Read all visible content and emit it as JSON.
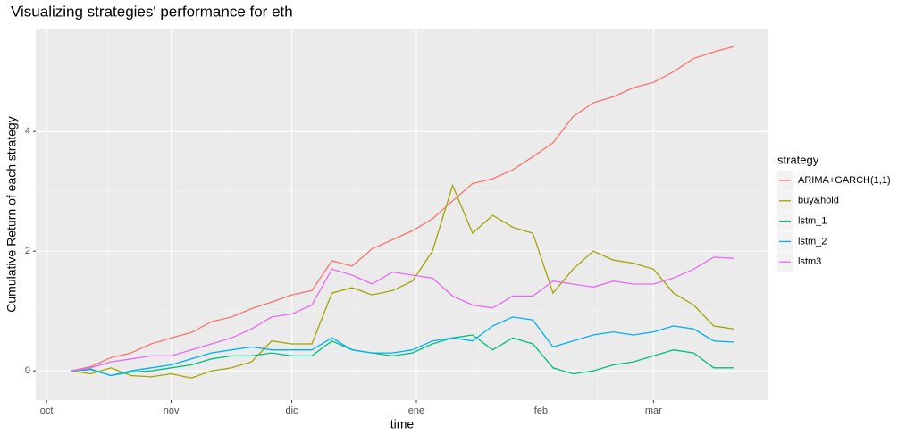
{
  "chart_data": {
    "type": "line",
    "title": "Visualizing strategies' performance for eth",
    "x_label": "time",
    "y_label": "Cumulative Return of each strategy",
    "legend_title": "strategy",
    "legend": "right",
    "grid": true,
    "x": [
      6,
      11,
      16,
      21,
      26,
      31,
      36,
      41,
      46,
      51,
      56,
      61,
      66,
      71,
      76,
      81,
      86,
      91,
      96,
      101,
      106,
      111,
      116,
      121,
      126,
      131,
      136,
      141,
      146,
      151,
      156,
      161,
      166,
      171
    ],
    "xlim": [
      -2.7,
      179.6
    ],
    "xticks": [
      {
        "value": 0,
        "label": "oct"
      },
      {
        "value": 31,
        "label": "nov"
      },
      {
        "value": 61,
        "label": "dic"
      },
      {
        "value": 92,
        "label": "ene"
      },
      {
        "value": 123,
        "label": "feb"
      },
      {
        "value": 151,
        "label": "mar"
      }
    ],
    "ylim": [
      -0.49,
      5.72
    ],
    "yticks": [
      0,
      2,
      4
    ],
    "series": [
      {
        "name": "ARIMA+GARCH(1,1)",
        "color": "#F8766D",
        "values": [
          0,
          0.07,
          0.22,
          0.3,
          0.45,
          0.55,
          0.64,
          0.82,
          0.9,
          1.04,
          1.15,
          1.27,
          1.34,
          1.84,
          1.75,
          2.04,
          2.19,
          2.34,
          2.54,
          2.84,
          3.13,
          3.21,
          3.36,
          3.58,
          3.81,
          4.25,
          4.48,
          4.58,
          4.73,
          4.82,
          5.0,
          5.22,
          5.33,
          5.42
        ]
      },
      {
        "name": "buy&hold",
        "color": "#A3A500",
        "values": [
          0,
          -0.05,
          0.05,
          -0.08,
          -0.1,
          -0.05,
          -0.12,
          0.0,
          0.05,
          0.15,
          0.5,
          0.45,
          0.45,
          1.3,
          1.39,
          1.27,
          1.34,
          1.5,
          2.0,
          3.1,
          2.3,
          2.6,
          2.4,
          2.3,
          1.3,
          1.7,
          2.0,
          1.85,
          1.8,
          1.7,
          1.3,
          1.1,
          0.75,
          0.7
        ]
      },
      {
        "name": "lstm_1",
        "color": "#00BF7D",
        "values": [
          0,
          0.03,
          -0.08,
          -0.02,
          0.0,
          0.05,
          0.1,
          0.2,
          0.25,
          0.25,
          0.3,
          0.25,
          0.25,
          0.5,
          0.35,
          0.3,
          0.25,
          0.3,
          0.45,
          0.55,
          0.6,
          0.35,
          0.55,
          0.45,
          0.05,
          -0.05,
          0.0,
          0.1,
          0.15,
          0.25,
          0.35,
          0.3,
          0.05,
          0.05
        ]
      },
      {
        "name": "lstm_2",
        "color": "#00B0F6",
        "values": [
          0,
          0.02,
          -0.08,
          0.0,
          0.05,
          0.1,
          0.2,
          0.3,
          0.35,
          0.4,
          0.35,
          0.35,
          0.35,
          0.55,
          0.35,
          0.3,
          0.3,
          0.35,
          0.5,
          0.55,
          0.5,
          0.75,
          0.9,
          0.85,
          0.4,
          0.5,
          0.6,
          0.65,
          0.6,
          0.65,
          0.75,
          0.7,
          0.5,
          0.48
        ]
      },
      {
        "name": "lstm3",
        "color": "#E76BF3",
        "values": [
          0,
          0.05,
          0.15,
          0.2,
          0.25,
          0.25,
          0.35,
          0.45,
          0.55,
          0.7,
          0.9,
          0.95,
          1.1,
          1.7,
          1.6,
          1.45,
          1.65,
          1.6,
          1.55,
          1.25,
          1.1,
          1.05,
          1.25,
          1.25,
          1.5,
          1.45,
          1.4,
          1.5,
          1.45,
          1.45,
          1.55,
          1.7,
          1.9,
          1.88
        ]
      }
    ]
  }
}
